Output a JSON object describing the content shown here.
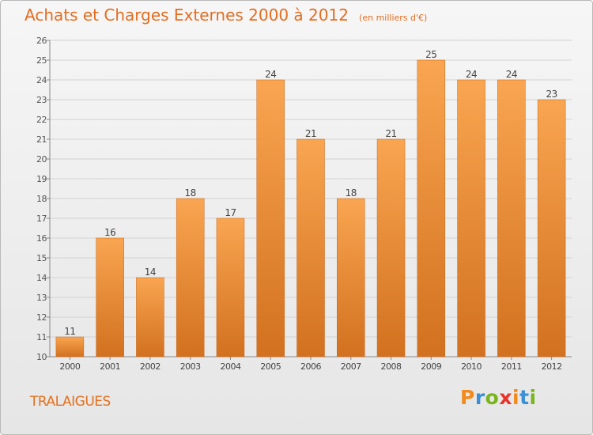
{
  "header": {
    "title": "Achats et Charges Externes 2000 à 2012",
    "subtitle": "(en milliers d'€)"
  },
  "footer": {
    "commune": "TRALAIGUES",
    "logo": "Proxiti"
  },
  "colors": {
    "title": "#e46d1f",
    "bar_top": "#f9a551",
    "bar_bottom": "#d2711f",
    "logo_letters": [
      "#f28a1c",
      "#3a8fd6",
      "#79b51c",
      "#e8332a",
      "#f28a1c",
      "#3a8fd6",
      "#79b51c"
    ]
  },
  "chart_data": {
    "type": "bar",
    "categories": [
      "2000",
      "2001",
      "2002",
      "2003",
      "2004",
      "2005",
      "2006",
      "2007",
      "2008",
      "2009",
      "2010",
      "2011",
      "2012"
    ],
    "values": [
      11,
      16,
      14,
      18,
      17,
      24,
      21,
      18,
      21,
      25,
      24,
      24,
      23
    ],
    "ylim": [
      10,
      26
    ],
    "yticks": [
      10,
      11,
      12,
      13,
      14,
      15,
      16,
      17,
      18,
      19,
      20,
      21,
      22,
      23,
      24,
      25,
      26
    ],
    "grid": true,
    "data_labels": true
  }
}
